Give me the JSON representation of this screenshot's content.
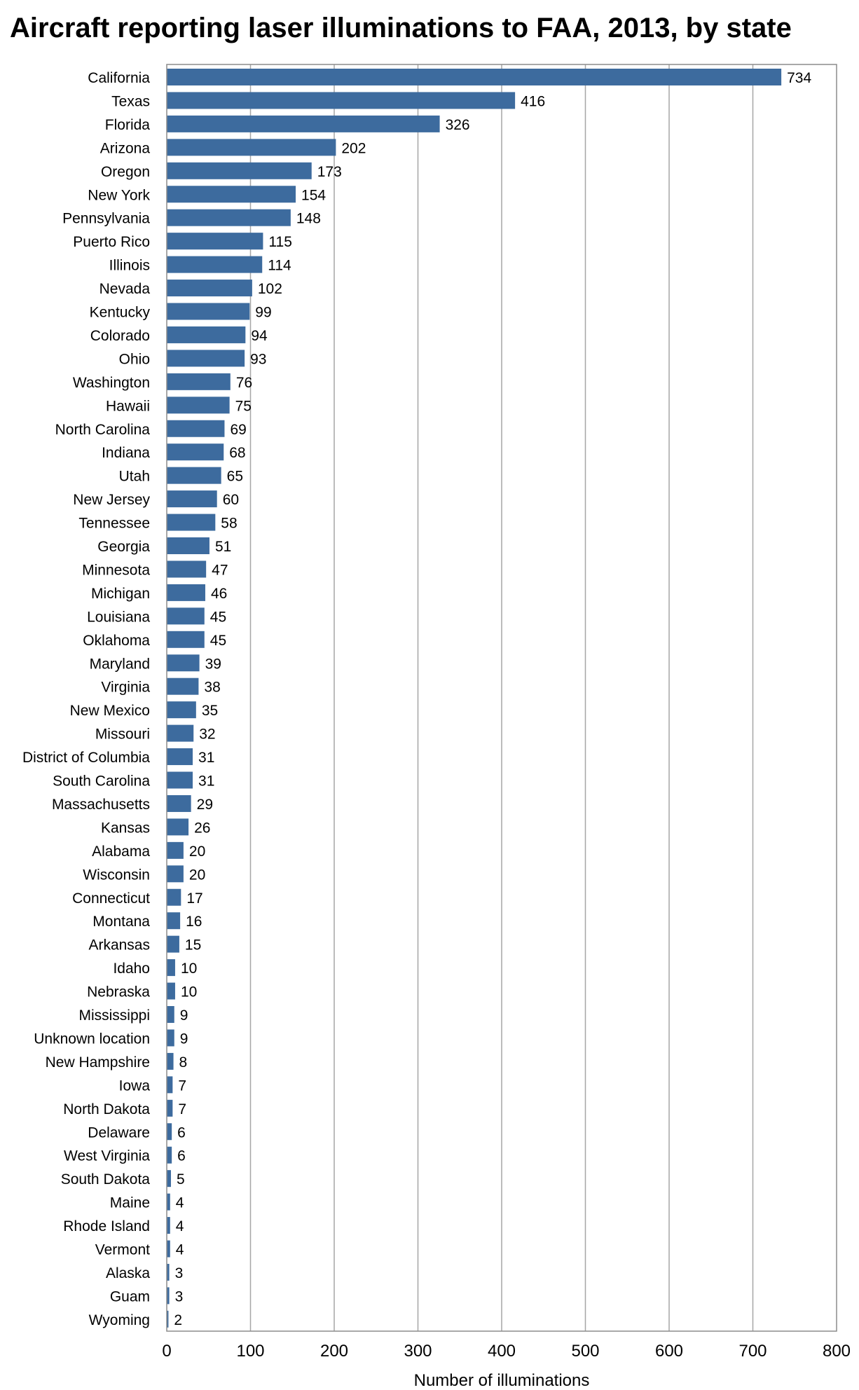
{
  "chart_data": {
    "type": "bar",
    "orientation": "horizontal",
    "title": "Aircraft reporting laser illuminations to FAA, 2013, by state",
    "xlabel": "Number of illuminations",
    "ylabel": "",
    "xlim": [
      0,
      800
    ],
    "xticks": [
      "0",
      "100",
      "200",
      "300",
      "400",
      "500",
      "600",
      "700",
      "800"
    ],
    "grid": "vertical",
    "data_labels": true,
    "bar_color": "#3d6b9e",
    "categories": [
      "California",
      "Texas",
      "Florida",
      "Arizona",
      "Oregon",
      "New York",
      "Pennsylvania",
      "Puerto Rico",
      "Illinois",
      "Nevada",
      "Kentucky",
      "Colorado",
      "Ohio",
      "Washington",
      "Hawaii",
      "North Carolina",
      "Indiana",
      "Utah",
      "New Jersey",
      "Tennessee",
      "Georgia",
      "Minnesota",
      "Michigan",
      "Louisiana",
      "Oklahoma",
      "Maryland",
      "Virginia",
      "New Mexico",
      "Missouri",
      "District of Columbia",
      "South Carolina",
      "Massachusetts",
      "Kansas",
      "Alabama",
      "Wisconsin",
      "Connecticut",
      "Montana",
      "Arkansas",
      "Idaho",
      "Nebraska",
      "Mississippi",
      "Unknown location",
      "New Hampshire",
      "Iowa",
      "North Dakota",
      "Delaware",
      "West Virginia",
      "South Dakota",
      "Maine",
      "Rhode Island",
      "Vermont",
      "Alaska",
      "Guam",
      "Wyoming"
    ],
    "values": [
      734,
      416,
      326,
      202,
      173,
      154,
      148,
      115,
      114,
      102,
      99,
      94,
      93,
      76,
      75,
      69,
      68,
      65,
      60,
      58,
      51,
      47,
      46,
      45,
      45,
      39,
      38,
      35,
      32,
      31,
      31,
      29,
      26,
      20,
      20,
      17,
      16,
      15,
      10,
      10,
      9,
      9,
      8,
      7,
      7,
      6,
      6,
      5,
      4,
      4,
      4,
      3,
      3,
      2
    ]
  }
}
